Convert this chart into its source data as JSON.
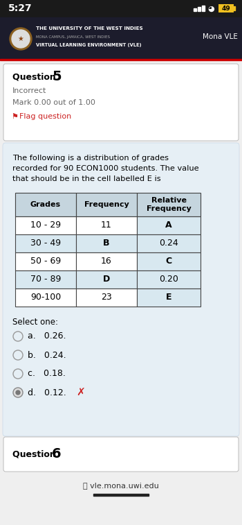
{
  "bg_dark": "#1a1a1a",
  "header_bg": "#1c1c2c",
  "page_bg": "#efefef",
  "content_bg": "#e6eff5",
  "white": "#ffffff",
  "status_time": "5:27",
  "battery": "49",
  "uni_name": "THE UNIVERSITY OF THE WEST INDIES",
  "uni_sub": "MONA CAMPUS, JAMAICA, WEST INDIES",
  "uni_vle_line": "VIRTUAL LEARNING ENVIRONMENT (VLE)",
  "mona_vle": "Mona VLE",
  "q5_label": "Question",
  "q5_num": "5",
  "incorrect": "Incorrect",
  "mark": "Mark 0.00 out of 1.00",
  "flag": "Flag question",
  "flag_color": "#cc2222",
  "problem_line1": "The following is a distribution of grades",
  "problem_line2": "recorded for 90 ECON1000 students. The value",
  "problem_line3": "that should be in the cell labelled E is",
  "tbl_header_bg": "#c5d5de",
  "tbl_white": "#ffffff",
  "tbl_blue": "#d8e8f0",
  "tbl_border": "#444444",
  "tbl_headers": [
    "Grades",
    "Frequency",
    "Relative\nFrequency"
  ],
  "tbl_rows": [
    [
      "10 - 29",
      "11",
      "A"
    ],
    [
      "30 - 49",
      "B",
      "0.24"
    ],
    [
      "50 - 69",
      "16",
      "C"
    ],
    [
      "70 - 89",
      "D",
      "0.20"
    ],
    [
      "90-100",
      "23",
      "E"
    ]
  ],
  "tbl_freq_bold": [
    false,
    true,
    false,
    true,
    false
  ],
  "tbl_rel_bold": [
    true,
    false,
    true,
    false,
    true
  ],
  "select": "Select one:",
  "options": [
    "a.   0.26.",
    "b.   0.24.",
    "c.   0.18.",
    "d.   0.12."
  ],
  "opt_selected": 3,
  "wrong_color": "#cc2222",
  "wrong_x_label": "✗",
  "q6_label": "Question",
  "q6_num": "6",
  "footer": "vle.mona.uwi.edu",
  "footer_bar_color": "#222222"
}
